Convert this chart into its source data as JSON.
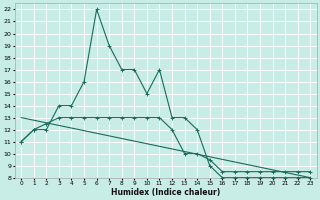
{
  "xlabel": "Humidex (Indice chaleur)",
  "xlim": [
    -0.5,
    23.5
  ],
  "ylim": [
    8,
    22.5
  ],
  "yticks": [
    8,
    9,
    10,
    11,
    12,
    13,
    14,
    15,
    16,
    17,
    18,
    19,
    20,
    21,
    22
  ],
  "xticks": [
    0,
    1,
    2,
    3,
    4,
    5,
    6,
    7,
    8,
    9,
    10,
    11,
    12,
    13,
    14,
    15,
    16,
    17,
    18,
    19,
    20,
    21,
    22,
    23
  ],
  "bg_color": "#c8ece6",
  "grid_color": "#ffffff",
  "line_color": "#1a6b5a",
  "line1_x": [
    0,
    1,
    2,
    3,
    4,
    5,
    6,
    7,
    8,
    9,
    10,
    11,
    12,
    13,
    14,
    15,
    16,
    17,
    18,
    19,
    20,
    21,
    22,
    23
  ],
  "line1_y": [
    11,
    12,
    12,
    14,
    14,
    16,
    22,
    19,
    17,
    17,
    15,
    17,
    13,
    13,
    12,
    9,
    8,
    8,
    8,
    8,
    8,
    8,
    8,
    8
  ],
  "line2_x": [
    0,
    1,
    2,
    3,
    4,
    5,
    6,
    7,
    8,
    9,
    10,
    11,
    12,
    13,
    14,
    15,
    16,
    17,
    18,
    19,
    20,
    21,
    22,
    23
  ],
  "line2_y": [
    11,
    12,
    12.5,
    13,
    13,
    13,
    13,
    13,
    13,
    13,
    13,
    13,
    12,
    10,
    10,
    9.5,
    8.5,
    8.5,
    8.5,
    8.5,
    8.5,
    8.5,
    8.5,
    8.5
  ],
  "line3_x": [
    0,
    23
  ],
  "line3_y": [
    13.0,
    8.0
  ]
}
